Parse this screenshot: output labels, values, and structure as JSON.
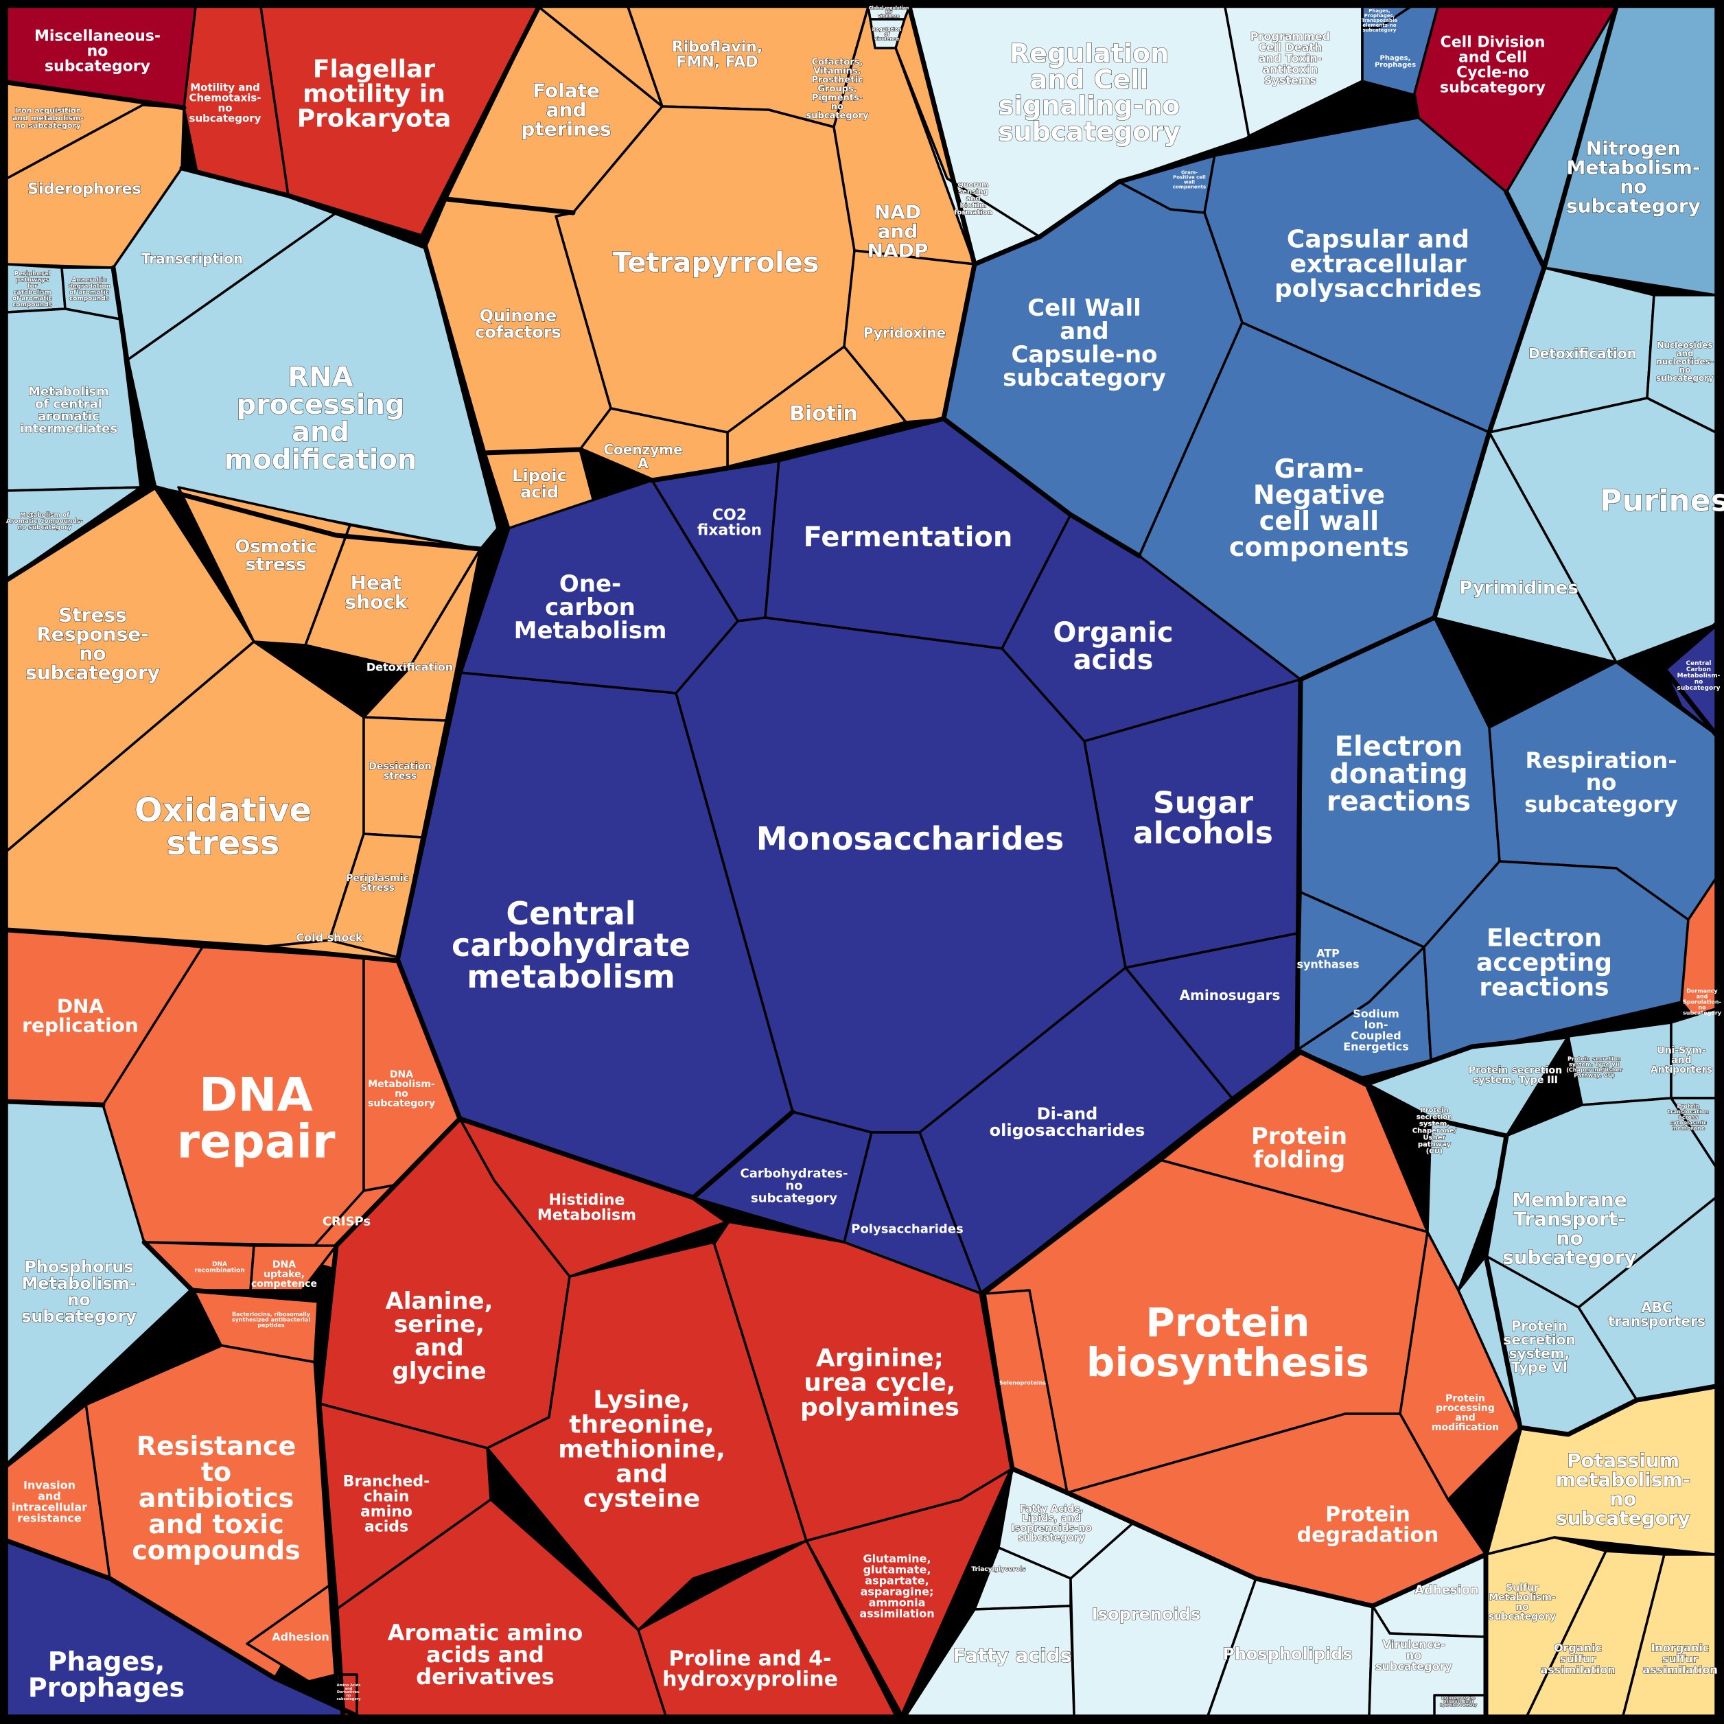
{
  "colors": {
    "navy": "#303593",
    "steel": "#4575b4",
    "skyblue": "#74add1",
    "lightblue": "#abd9e9",
    "paleblue": "#e0f3f8",
    "paleyellow": "#fee090",
    "orange": "#fdae61",
    "redorange": "#f46d43",
    "red": "#d73027",
    "crimson": "#a50026"
  },
  "cells": [
    {
      "id": "misc-no-subcategory",
      "label": "Miscellaneous-\nno\nsubcategory",
      "color": "crimson"
    },
    {
      "id": "motility-no-subcategory",
      "label": "Motility and\nChemotaxis-\nno\nsubcategory",
      "color": "red"
    },
    {
      "id": "flagellar-motility",
      "label": "Flagellar\nmotility in\nProkaryota",
      "color": "red"
    },
    {
      "id": "iron-acquisition",
      "label": "Iron acquisition\nand metabolism-\nno subcategory",
      "color": "orange"
    },
    {
      "id": "siderophores",
      "label": "Siderophores",
      "color": "orange"
    },
    {
      "id": "transcription",
      "label": "Transcription",
      "color": "lightblue"
    },
    {
      "id": "peripheral-pathways",
      "label": "Peripheral\npathways\nfor\ncatabolism\nof aromatic\ncompounds",
      "color": "lightblue"
    },
    {
      "id": "anaerobic-degradation",
      "label": "Anaerobic\ndegradation\nof aromatic\ncompounds",
      "color": "lightblue"
    },
    {
      "id": "central-aromatic",
      "label": "Metabolism\nof central\naromatic\nintermediates",
      "color": "lightblue"
    },
    {
      "id": "aromatic-no-subcategory",
      "label": "Metabolism of\nAromatic Compounds-\nno subcategory",
      "color": "lightblue"
    },
    {
      "id": "rna-processing",
      "label": "RNA\nprocessing\nand\nmodification",
      "color": "lightblue"
    },
    {
      "id": "folate",
      "label": "Folate\nand\npterines",
      "color": "orange"
    },
    {
      "id": "riboflavin",
      "label": "Riboflavin,\nFMN, FAD",
      "color": "orange"
    },
    {
      "id": "cofactors-no-subcategory",
      "label": "Cofactors,\nVitamins,\nProsthetic\nGroups,\nPigments-\nno\nsubcategory",
      "color": "orange"
    },
    {
      "id": "tetrapyrroles",
      "label": "Tetrapyrroles",
      "color": "orange"
    },
    {
      "id": "nad-nadp",
      "label": "NAD\nand\nNADP",
      "color": "orange"
    },
    {
      "id": "quinone-cofactors",
      "label": "Quinone\ncofactors",
      "color": "orange"
    },
    {
      "id": "pyridoxine",
      "label": "Pyridoxine",
      "color": "orange"
    },
    {
      "id": "biotin",
      "label": "Biotin",
      "color": "orange"
    },
    {
      "id": "coenzyme-a",
      "label": "Coenzyme\nA",
      "color": "orange"
    },
    {
      "id": "lipoic-acid",
      "label": "Lipoic\nacid",
      "color": "orange"
    },
    {
      "id": "global-regulation",
      "label": "Global regulation\nfor\nvirulence",
      "color": "paleblue"
    },
    {
      "id": "regulation-of-virulence",
      "label": "Regulation\nof\nvirulence",
      "color": "paleblue"
    },
    {
      "id": "regulation-no-subcategory",
      "label": "Regulation\nand Cell\nsignaling-no\nsubcategory",
      "color": "paleblue"
    },
    {
      "id": "quorum-sensing",
      "label": "Quorum\nsensing\nand\nbiofilm\nformation",
      "color": "paleblue"
    },
    {
      "id": "programmed-cell-death",
      "label": "Programmed\nCell Death\nand Toxin-\nantitoxin\nSystems",
      "color": "paleblue"
    },
    {
      "id": "phages-small",
      "label": "Phages,\nProphages,\nTransposable\nelements-no\nsubcategory",
      "color": "steel"
    },
    {
      "id": "phages-prophages-small",
      "label": "Phages,\nProphages",
      "color": "steel"
    },
    {
      "id": "cell-division",
      "label": "Cell Division\nand Cell\nCycle-no\nsubcategory",
      "color": "crimson"
    },
    {
      "id": "nitrogen-metabolism",
      "label": "Nitrogen\nMetabolism-\nno\nsubcategory",
      "color": "skyblue"
    },
    {
      "id": "gram-positive",
      "label": "Gram-\nPositive cell\nwall\ncomponents",
      "color": "steel"
    },
    {
      "id": "capsular",
      "label": "Capsular and\nextracellular\npolysacchrides",
      "color": "steel"
    },
    {
      "id": "cell-wall-no-subcategory",
      "label": "Cell Wall\nand\nCapsule-no\nsubcategory",
      "color": "steel"
    },
    {
      "id": "gram-negative",
      "label": "Gram-\nNegative\ncell wall\ncomponents",
      "color": "steel"
    },
    {
      "id": "detoxification-blue",
      "label": "Detoxification",
      "color": "lightblue"
    },
    {
      "id": "nucleosides",
      "label": "Nucleosides\nand\nnucleotides-\nno\nsubcategory",
      "color": "lightblue"
    },
    {
      "id": "purines",
      "label": "Purines",
      "color": "lightblue"
    },
    {
      "id": "pyrimidines",
      "label": "Pyrimidines",
      "color": "lightblue"
    },
    {
      "id": "central-carbon-small",
      "label": "Central\nCarbon\nMetabolism-\nno\nsubcategory",
      "color": "navy"
    },
    {
      "id": "co2-fixation",
      "label": "CO2\nfixation",
      "color": "navy"
    },
    {
      "id": "fermentation",
      "label": "Fermentation",
      "color": "navy"
    },
    {
      "id": "one-carbon",
      "label": "One-\ncarbon\nMetabolism",
      "color": "navy"
    },
    {
      "id": "organic-acids",
      "label": "Organic\nacids",
      "color": "navy"
    },
    {
      "id": "monosaccharides",
      "label": "Monosaccharides",
      "color": "navy"
    },
    {
      "id": "sugar-alcohols",
      "label": "Sugar\nalcohols",
      "color": "navy"
    },
    {
      "id": "central-carbohydrate",
      "label": "Central\ncarbohydrate\nmetabolism",
      "color": "navy"
    },
    {
      "id": "aminosugars",
      "label": "Aminosugars",
      "color": "navy"
    },
    {
      "id": "di-oligosaccharides",
      "label": "Di-and\noligosaccharides",
      "color": "navy"
    },
    {
      "id": "carbohydrates-no-subcategory",
      "label": "Carbohydrates-\nno\nsubcategory",
      "color": "navy"
    },
    {
      "id": "polysaccharides",
      "label": "Polysaccharides",
      "color": "navy"
    },
    {
      "id": "electron-donating",
      "label": "Electron\ndonating\nreactions",
      "color": "steel"
    },
    {
      "id": "respiration-no-subcategory",
      "label": "Respiration-\nno\nsubcategory",
      "color": "steel"
    },
    {
      "id": "atp-synthases",
      "label": "ATP\nsynthases",
      "color": "steel"
    },
    {
      "id": "sodium-ion",
      "label": "Sodium\nIon-\nCoupled\nEnergetics",
      "color": "steel"
    },
    {
      "id": "electron-accepting",
      "label": "Electron\naccepting\nreactions",
      "color": "steel"
    },
    {
      "id": "dormancy",
      "label": "Dormancy\nand\nSporulation-\nno\nsubcategory",
      "color": "redorange"
    },
    {
      "id": "osmotic-stress",
      "label": "Osmotic\nstress",
      "color": "orange"
    },
    {
      "id": "heat-shock",
      "label": "Heat\nshock",
      "color": "orange"
    },
    {
      "id": "stress-no-subcategory",
      "label": "Stress\nResponse-\nno\nsubcategory",
      "color": "orange"
    },
    {
      "id": "detoxification-orange",
      "label": "Detoxification",
      "color": "orange"
    },
    {
      "id": "oxidative-stress",
      "label": "Oxidative\nstress",
      "color": "orange"
    },
    {
      "id": "dessication-stress",
      "label": "Dessication\nstress",
      "color": "orange"
    },
    {
      "id": "periplasmic-stress",
      "label": "Periplasmic\nStress",
      "color": "orange"
    },
    {
      "id": "cold-shock",
      "label": "Cold shock",
      "color": "orange"
    },
    {
      "id": "dna-replication",
      "label": "DNA\nreplication",
      "color": "redorange"
    },
    {
      "id": "dna-repair",
      "label": "DNA\nrepair",
      "color": "redorange"
    },
    {
      "id": "dna-no-subcategory",
      "label": "DNA\nMetabolism-\nno\nsubcategory",
      "color": "redorange"
    },
    {
      "id": "crisps",
      "label": "CRISPs",
      "color": "redorange"
    },
    {
      "id": "dna-recombination",
      "label": "DNA\nrecombination",
      "color": "redorange"
    },
    {
      "id": "dna-uptake",
      "label": "DNA\nuptake,\ncompetence",
      "color": "redorange"
    },
    {
      "id": "phosphorus",
      "label": "Phosphorus\nMetabolism-\nno\nsubcategory",
      "color": "lightblue"
    },
    {
      "id": "bacteriocins",
      "label": "Bacteriocins, ribosomally\nsynthesized antibacterial\npeptides",
      "color": "redorange"
    },
    {
      "id": "resistance-antibiotics",
      "label": "Resistance\nto\nantibiotics\nand toxic\ncompounds",
      "color": "redorange"
    },
    {
      "id": "invasion",
      "label": "Invasion\nand\nintracellular\nresistance",
      "color": "redorange"
    },
    {
      "id": "adhesion-orange",
      "label": "Adhesion",
      "color": "redorange"
    },
    {
      "id": "phages-prophages",
      "label": "Phages,\nProphages",
      "color": "navy"
    },
    {
      "id": "histidine",
      "label": "Histidine\nMetabolism",
      "color": "red"
    },
    {
      "id": "alanine",
      "label": "Alanine,\nserine,\nand\nglycine",
      "color": "red"
    },
    {
      "id": "lysine",
      "label": "Lysine,\nthreonine,\nmethionine,\nand\ncysteine",
      "color": "red"
    },
    {
      "id": "arginine",
      "label": "Arginine;\nurea cycle,\npolyamines",
      "color": "red"
    },
    {
      "id": "branched-chain",
      "label": "Branched-\nchain\namino\nacids",
      "color": "red"
    },
    {
      "id": "aromatic-amino",
      "label": "Aromatic amino\nacids and\nderivatives",
      "color": "red"
    },
    {
      "id": "proline",
      "label": "Proline and 4-\nhydroxyproline",
      "color": "red"
    },
    {
      "id": "glutamine",
      "label": "Glutamine,\nglutamate,\naspartate,\nasparagine;\nammonia\nassimilation",
      "color": "red"
    },
    {
      "id": "amino-no-subcategory",
      "label": "Amino Acids\nand\nDerivatives-\nno\nsubcategory",
      "color": "red"
    },
    {
      "id": "protein-folding",
      "label": "Protein\nfolding",
      "color": "redorange"
    },
    {
      "id": "protein-biosynthesis",
      "label": "Protein\nbiosynthesis",
      "color": "redorange"
    },
    {
      "id": "selenoproteins",
      "label": "Selenoproteins",
      "color": "redorange"
    },
    {
      "id": "protein-processing",
      "label": "Protein\nprocessing\nand\nmodification",
      "color": "redorange"
    },
    {
      "id": "protein-degradation",
      "label": "Protein\ndegradation",
      "color": "redorange"
    },
    {
      "id": "protein-secretion-iii",
      "label": "Protein secretion\nsystem, Type III",
      "color": "lightblue"
    },
    {
      "id": "protein-secretion-vii",
      "label": "Protein secretion\nsystem, Type VII\n(Chaperone/Usher\nPathway, CU)",
      "color": "lightblue"
    },
    {
      "id": "uni-sym-antiporters",
      "label": "Uni-Sym-\nand\nAntiporters",
      "color": "lightblue"
    },
    {
      "id": "protein-secretion-cu",
      "label": "Protein\nsecretion\nsystem,\nChaperone/\nUsher\npathway\n(CU)",
      "color": "lightblue"
    },
    {
      "id": "protein-translocation",
      "label": "Protein\ntranslocation\nacross\ncytoplasmic\nmembrane",
      "color": "lightblue"
    },
    {
      "id": "membrane-transport",
      "label": "Membrane\nTransport-\nno\nsubcategory",
      "color": "lightblue"
    },
    {
      "id": "abc-transporters",
      "label": "ABC\ntransporters",
      "color": "lightblue"
    },
    {
      "id": "protein-secretion-vi",
      "label": "Protein\nsecretion\nsystem,\nType VI",
      "color": "lightblue"
    },
    {
      "id": "potassium",
      "label": "Potassium\nmetabolism-\nno\nsubcategory",
      "color": "paleyellow"
    },
    {
      "id": "sulfur-no-subcategory",
      "label": "Sulfur\nMetabolism-\nno\nsubcategory",
      "color": "paleyellow"
    },
    {
      "id": "organic-sulfur",
      "label": "Organic\nsulfur\nassimilation",
      "color": "paleyellow"
    },
    {
      "id": "inorganic-sulfur",
      "label": "Inorganic\nsulfur\nassimilation",
      "color": "paleyellow"
    },
    {
      "id": "fatty-acids-no-subcategory",
      "label": "Fatty Acids,\nLipids, and\nIsoprenoids-no\nsubcategory",
      "color": "paleblue"
    },
    {
      "id": "triacylglycerols",
      "label": "Triacylglycerols",
      "color": "paleblue"
    },
    {
      "id": "isoprenoids",
      "label": "Isoprenoids",
      "color": "paleblue"
    },
    {
      "id": "fatty-acids",
      "label": "Fatty acids",
      "color": "paleblue"
    },
    {
      "id": "phospholipids",
      "label": "Phospholipids",
      "color": "paleblue"
    },
    {
      "id": "adhesion-blue",
      "label": "Adhesion",
      "color": "paleblue"
    },
    {
      "id": "virulence-no-subcategory",
      "label": "Virulence-\nno\nsubcategory",
      "color": "paleblue"
    },
    {
      "id": "resistance-oxidative",
      "label": "Resistance to the\nOxidative Burst\nHydrolase Pathway",
      "color": "paleblue"
    }
  ]
}
